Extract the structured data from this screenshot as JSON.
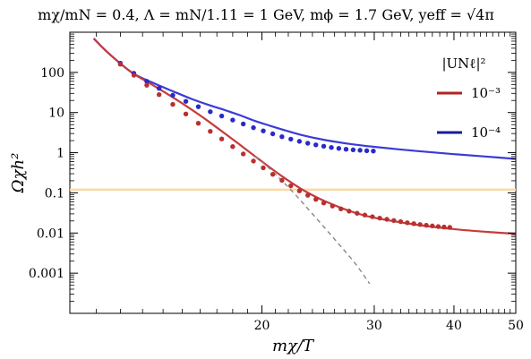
{
  "chart_data": {
    "type": "line",
    "title": "mχ/mN = 0.4, Λ = mN/1.11 = 1 GeV, mϕ = 1.7 GeV, yeff = √4π",
    "xlabel": "mχ/T",
    "ylabel": "Ωχh²",
    "x_scale": "log",
    "y_scale": "log",
    "xlim": [
      10,
      50
    ],
    "ylim": [
      0.0001,
      1000
    ],
    "x_ticks": [
      {
        "value": 20,
        "label": "20"
      },
      {
        "value": 30,
        "label": "30"
      },
      {
        "value": 40,
        "label": "40"
      },
      {
        "value": 50,
        "label": "50"
      }
    ],
    "y_ticks": [
      {
        "value": 100,
        "label": "100"
      },
      {
        "value": 10,
        "label": "10"
      },
      {
        "value": 1,
        "label": "1"
      },
      {
        "value": 0.1,
        "label": "0.1"
      },
      {
        "value": 0.01,
        "label": "0.01"
      },
      {
        "value": 0.001,
        "label": "0.001"
      }
    ],
    "legend": {
      "title": "|UNℓ|²",
      "placement": "top-right",
      "entries": [
        {
          "label": "10⁻³",
          "color": "#b22222"
        },
        {
          "label": "10⁻⁴",
          "color": "#1a1aa0"
        }
      ]
    },
    "horizontal_line": {
      "y": 0.12,
      "color": "#fcd9a6"
    },
    "series": [
      {
        "name": "10⁻⁴",
        "style": "solid",
        "color": "#3b3bd6",
        "x": [
          10.9,
          11.5,
          12.5,
          13.5,
          14.5,
          15.5,
          16.5,
          17.5,
          18.5,
          19.5,
          20.5,
          21.5,
          23,
          25,
          27.5,
          30,
          35,
          40,
          45,
          50
        ],
        "y": [
          700,
          300,
          100,
          55,
          34,
          22,
          15.5,
          11.5,
          8.5,
          6.2,
          4.8,
          3.8,
          2.8,
          2.1,
          1.65,
          1.4,
          1.1,
          0.92,
          0.8,
          0.7
        ]
      },
      {
        "name": "10⁻³",
        "style": "solid",
        "color": "#c43c3c",
        "x": [
          10.9,
          11.5,
          12.5,
          13.5,
          14.5,
          15.5,
          16.5,
          17.5,
          18.5,
          19.5,
          20.5,
          21.5,
          22.5,
          23.5,
          25,
          27.5,
          30,
          35,
          40,
          45,
          50
        ],
        "y": [
          700,
          300,
          100,
          48,
          24,
          12,
          6.0,
          3.0,
          1.55,
          0.82,
          0.45,
          0.26,
          0.16,
          0.105,
          0.064,
          0.035,
          0.024,
          0.016,
          0.0125,
          0.0107,
          0.0096
        ]
      },
      {
        "name": "",
        "style": "dashed",
        "color": "#888888",
        "x": [
          19.5,
          20.5,
          21.5,
          22.5,
          24,
          26,
          28,
          29.5
        ],
        "y": [
          0.82,
          0.42,
          0.2,
          0.095,
          0.03,
          0.007,
          0.00175,
          0.00055
        ]
      }
    ],
    "markers": [
      {
        "series": "10⁻⁴",
        "color": "#2a2ac8",
        "x": [
          12.0,
          12.6,
          13.2,
          13.8,
          14.5,
          15.2,
          15.9,
          16.6,
          17.3,
          18.0,
          18.7,
          19.4,
          20.1,
          20.8,
          21.5,
          22.2,
          22.9,
          23.6,
          24.3,
          25.0,
          25.7,
          26.4,
          27.1,
          27.8,
          28.5,
          29.2,
          29.9
        ],
        "y": [
          170,
          95,
          60,
          40,
          27,
          19,
          14,
          10.5,
          8.2,
          6.5,
          5.2,
          4.2,
          3.5,
          2.95,
          2.5,
          2.18,
          1.92,
          1.72,
          1.57,
          1.45,
          1.35,
          1.28,
          1.22,
          1.18,
          1.15,
          1.12,
          1.1
        ]
      },
      {
        "series": "10⁻³",
        "color": "#b83030",
        "x": [
          12.0,
          12.6,
          13.2,
          13.8,
          14.5,
          15.2,
          15.9,
          16.6,
          17.3,
          18.0,
          18.7,
          19.4,
          20.1,
          20.8,
          21.5,
          22.2,
          22.9,
          23.6,
          24.3,
          25.0,
          25.8,
          26.6,
          27.4,
          28.2,
          29.0,
          29.8,
          30.6,
          31.4,
          32.2,
          33.0,
          33.8,
          34.6,
          35.4,
          36.2,
          37.0,
          37.8,
          38.6,
          39.4
        ],
        "y": [
          160,
          85,
          48,
          28,
          16,
          9.2,
          5.4,
          3.4,
          2.2,
          1.42,
          0.93,
          0.62,
          0.42,
          0.29,
          0.205,
          0.15,
          0.112,
          0.087,
          0.069,
          0.056,
          0.047,
          0.04,
          0.035,
          0.031,
          0.028,
          0.0255,
          0.0235,
          0.022,
          0.0205,
          0.0192,
          0.018,
          0.0171,
          0.0163,
          0.0156,
          0.015,
          0.0145,
          0.0141,
          0.0138
        ]
      }
    ]
  }
}
